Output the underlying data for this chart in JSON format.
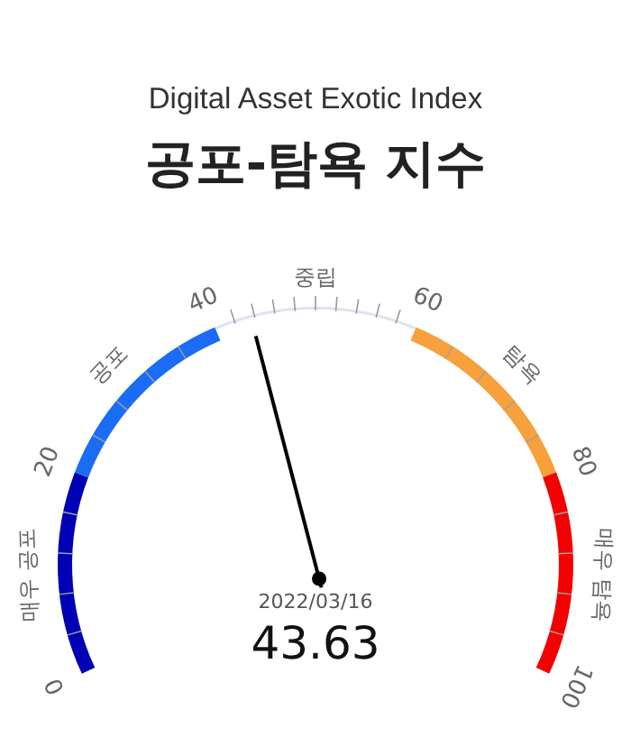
{
  "chart_data": {
    "type": "other",
    "title": "Digital Asset Exotic Index",
    "subtitle": "공포-탐욕 지수",
    "categories": [
      "매우 공포",
      "공포",
      "중립",
      "탐욕",
      "매우 탐욕"
    ],
    "values": [
      20,
      40,
      60,
      80,
      100
    ],
    "value_labels": [
      "20",
      "40",
      "60",
      "80",
      "100"
    ],
    "colors": [
      "#0000b4",
      "#1a6cf5",
      "#dde3f0",
      "#f7a03c",
      "#f50000"
    ],
    "annotations": [
      "0",
      "2022/03/16",
      "43.63"
    ]
  }
}
